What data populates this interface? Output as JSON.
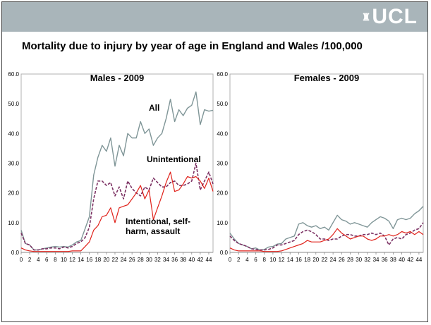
{
  "logo_text": "UCL",
  "slide_title": "Mortality due to injury by year of age in England and Wales /100,000",
  "colors": {
    "header_bar": "#a9b5ba",
    "all": "#7f9597",
    "unintentional": "#7b3062",
    "intentional": "#e0221b"
  },
  "chart_data": [
    {
      "type": "line",
      "title": "Males - 2009",
      "xlabel": "",
      "ylabel": "",
      "ylim": [
        0,
        60
      ],
      "xlim": [
        0,
        45
      ],
      "x_tick_labels": [
        "0",
        "2",
        "4",
        "6",
        "8",
        "10",
        "12",
        "14",
        "16",
        "18",
        "20",
        "22",
        "24",
        "26",
        "28",
        "30",
        "32",
        "34",
        "36",
        "38",
        "40",
        "42",
        "44"
      ],
      "y_tick_labels": [
        "0.0",
        "10.0",
        "20.0",
        "30.0",
        "40.0",
        "50.0",
        "60.0"
      ],
      "grid": false,
      "annotations": [
        "All",
        "Unintentional",
        "Intentional, self-harm, assault"
      ],
      "x": [
        0,
        1,
        2,
        3,
        4,
        5,
        6,
        7,
        8,
        9,
        10,
        11,
        12,
        13,
        14,
        15,
        16,
        17,
        18,
        19,
        20,
        21,
        22,
        23,
        24,
        25,
        26,
        27,
        28,
        29,
        30,
        31,
        32,
        33,
        34,
        35,
        36,
        37,
        38,
        39,
        40,
        41,
        42,
        43,
        44,
        45
      ],
      "series": [
        {
          "key": "all",
          "values": [
            7.5,
            3.0,
            2.5,
            0.8,
            0.8,
            1.2,
            1.5,
            1.8,
            2.0,
            1.8,
            2.0,
            1.8,
            2.5,
            3.5,
            4.0,
            8.0,
            12.0,
            26.0,
            32.0,
            36.0,
            34.0,
            38.5,
            29.0,
            36.0,
            32.5,
            40.0,
            38.5,
            38.5,
            44.0,
            40.0,
            41.5,
            36.0,
            38.5,
            40.0,
            45.0,
            51.5,
            44.0,
            48.0,
            46.0,
            48.5,
            49.5,
            54.0,
            43.0,
            48.0,
            47.5,
            47.8
          ]
        },
        {
          "key": "unintentional",
          "values": [
            6.5,
            3.0,
            2.5,
            0.8,
            0.8,
            1.2,
            1.2,
            1.5,
            1.5,
            1.2,
            1.8,
            1.5,
            2.0,
            3.0,
            3.5,
            5.0,
            8.5,
            18.0,
            24.0,
            24.0,
            22.5,
            23.5,
            19.0,
            22.0,
            18.0,
            24.0,
            21.5,
            20.0,
            19.0,
            22.0,
            21.0,
            25.0,
            23.5,
            22.0,
            22.0,
            23.5,
            24.0,
            22.5,
            22.5,
            23.0,
            24.0,
            30.0,
            21.0,
            24.0,
            27.0,
            23.0
          ]
        },
        {
          "key": "intentional",
          "values": [
            1.5,
            0.8,
            0.5,
            0.3,
            0.3,
            0.3,
            0.3,
            0.3,
            0.3,
            0.3,
            0.3,
            0.3,
            0.5,
            0.5,
            0.5,
            2.0,
            3.5,
            7.5,
            9.0,
            12.0,
            12.5,
            15.0,
            10.0,
            15.0,
            15.5,
            16.0,
            18.0,
            20.0,
            22.5,
            18.0,
            21.0,
            11.0,
            15.0,
            19.0,
            23.5,
            27.0,
            20.5,
            21.0,
            23.0,
            25.5,
            25.0,
            25.5,
            24.0,
            21.5,
            25.0,
            20.5
          ]
        }
      ]
    },
    {
      "type": "line",
      "title": "Females - 2009",
      "xlabel": "",
      "ylabel": "",
      "ylim": [
        0,
        60
      ],
      "xlim": [
        0,
        45
      ],
      "x_tick_labels": [
        "0",
        "2",
        "4",
        "6",
        "8",
        "10",
        "12",
        "14",
        "16",
        "18",
        "20",
        "22",
        "24",
        "26",
        "28",
        "30",
        "32",
        "34",
        "36",
        "38",
        "40",
        "42",
        "44"
      ],
      "y_tick_labels": [
        "0.0",
        "10.0",
        "20.0",
        "30.0",
        "40.0",
        "50.0",
        "60.0"
      ],
      "grid": false,
      "x": [
        0,
        1,
        2,
        3,
        4,
        5,
        6,
        7,
        8,
        9,
        10,
        11,
        12,
        13,
        14,
        15,
        16,
        17,
        18,
        19,
        20,
        21,
        22,
        23,
        24,
        25,
        26,
        27,
        28,
        29,
        30,
        31,
        32,
        33,
        34,
        35,
        36,
        37,
        38,
        39,
        40,
        41,
        42,
        43,
        44,
        45
      ],
      "series": [
        {
          "key": "all",
          "values": [
            6.5,
            4.5,
            3.0,
            2.5,
            2.0,
            1.2,
            1.5,
            0.8,
            1.0,
            1.8,
            2.0,
            2.8,
            3.0,
            4.5,
            5.0,
            5.5,
            9.5,
            10.0,
            9.0,
            8.5,
            9.0,
            8.0,
            8.5,
            7.5,
            10.0,
            12.5,
            11.0,
            10.5,
            9.5,
            10.0,
            9.5,
            9.0,
            8.5,
            10.0,
            11.0,
            12.0,
            11.5,
            10.5,
            8.0,
            11.0,
            11.5,
            11.0,
            11.5,
            13.0,
            14.0,
            15.5
          ]
        },
        {
          "key": "unintentional",
          "values": [
            5.5,
            4.0,
            3.0,
            2.5,
            2.0,
            1.2,
            1.0,
            0.8,
            0.8,
            1.0,
            1.5,
            2.5,
            2.5,
            3.0,
            3.5,
            4.0,
            6.0,
            7.0,
            7.5,
            7.0,
            6.0,
            4.5,
            4.5,
            4.0,
            4.5,
            4.5,
            5.5,
            6.0,
            6.0,
            5.5,
            5.5,
            6.0,
            6.0,
            6.5,
            6.0,
            6.5,
            5.5,
            2.5,
            4.5,
            5.0,
            4.5,
            6.0,
            6.5,
            7.5,
            8.0,
            10.0
          ]
        },
        {
          "key": "intentional",
          "values": [
            1.5,
            0.8,
            0.5,
            0.5,
            0.5,
            0.5,
            0.5,
            0.5,
            0.3,
            0.3,
            0.3,
            0.3,
            0.5,
            1.0,
            1.5,
            2.0,
            2.5,
            3.0,
            4.0,
            3.5,
            3.5,
            3.5,
            4.0,
            4.5,
            6.0,
            8.0,
            6.5,
            5.5,
            4.5,
            5.0,
            5.5,
            5.5,
            4.5,
            4.0,
            4.5,
            5.5,
            5.5,
            6.0,
            5.5,
            6.0,
            7.0,
            6.5,
            7.0,
            6.0,
            7.0,
            6.0
          ]
        }
      ]
    }
  ]
}
